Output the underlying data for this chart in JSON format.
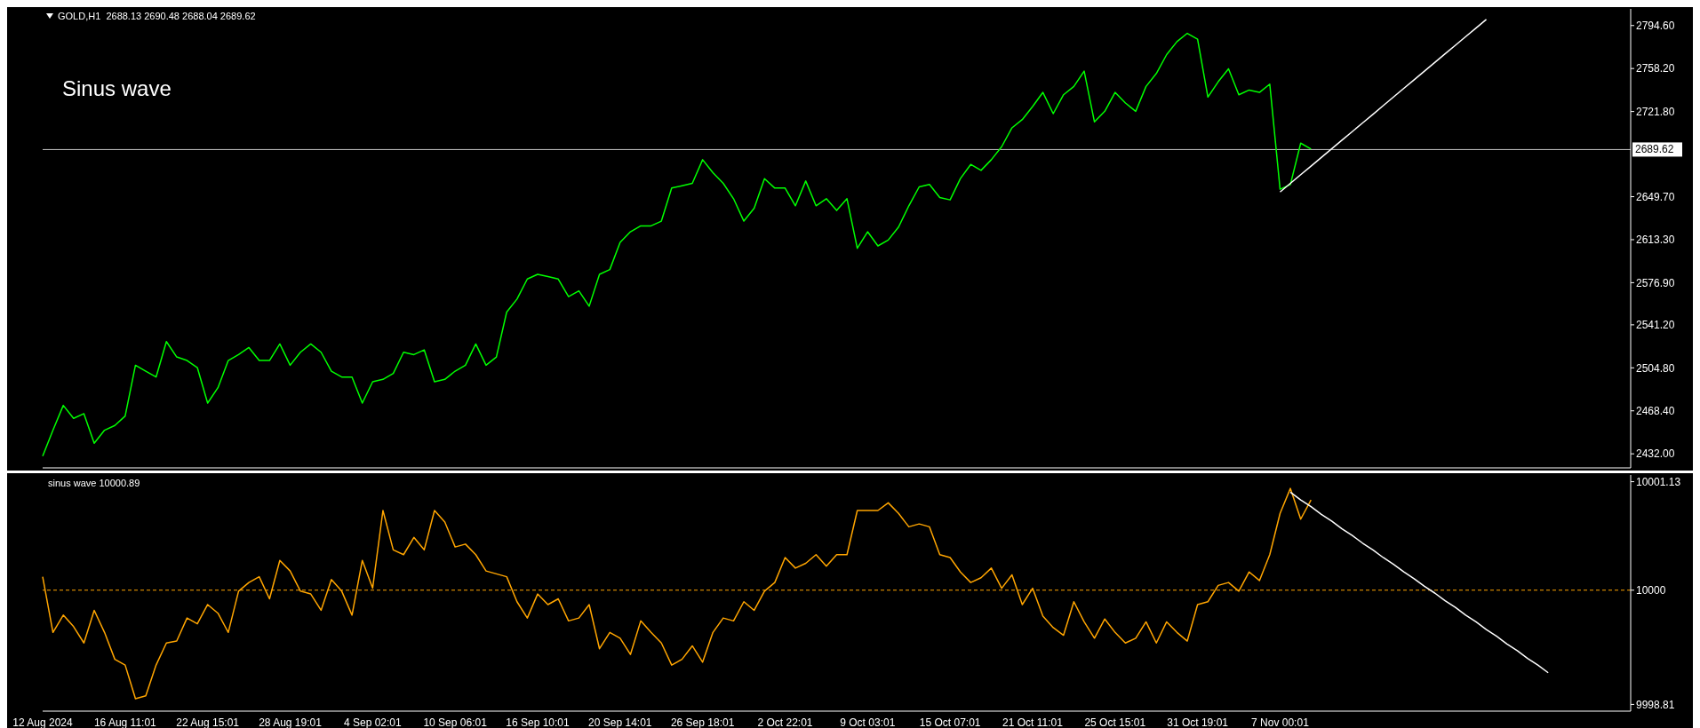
{
  "chart_data": [
    {
      "type": "line",
      "title": "Sinus wave",
      "subtitle": "GOLD,H1  2688.13 2690.48 2688.04 2689.62",
      "categories": [
        null,
        null,
        null,
        null,
        null,
        null,
        null,
        null,
        null,
        null,
        null,
        null,
        null,
        null,
        null,
        null,
        null,
        null,
        null,
        null,
        null,
        null,
        null,
        null,
        null,
        null,
        null,
        null,
        null,
        null,
        null,
        null,
        null,
        null,
        null,
        null,
        null,
        null,
        null,
        null,
        null,
        null,
        null,
        null,
        null,
        null,
        null,
        null,
        null,
        null,
        null,
        null,
        null,
        null,
        null,
        null,
        null,
        null,
        null,
        null,
        null,
        null,
        null,
        null,
        null,
        null,
        null,
        null,
        null,
        null,
        null,
        null,
        null,
        null,
        null,
        null,
        null,
        null,
        null,
        null,
        null,
        null,
        null,
        null,
        null,
        null,
        null,
        null,
        null,
        null,
        null,
        null,
        null,
        null,
        null,
        null,
        null,
        null,
        null,
        null,
        null,
        null,
        null,
        null,
        null,
        null,
        null,
        null,
        null,
        null,
        null,
        null,
        null,
        null,
        null,
        null,
        null,
        null,
        null,
        null,
        null,
        null,
        null,
        null,
        null,
        null,
        null,
        null,
        null,
        null,
        null,
        null,
        null,
        null,
        null,
        null,
        null,
        null,
        null,
        null,
        null,
        null,
        null,
        null,
        null,
        null,
        null,
        null,
        null,
        null,
        null,
        null,
        null,
        null,
        null
      ],
      "ylim": [
        2420.1,
        2808.7
      ],
      "yticks": [
        {
          "value": 2794.6,
          "label": "2794.60"
        },
        {
          "value": 2758.2,
          "label": "2758.20"
        },
        {
          "value": 2721.8,
          "label": "2721.80"
        },
        {
          "value": 2649.7,
          "label": "2649.70"
        },
        {
          "value": 2613.3,
          "label": "2613.30"
        },
        {
          "value": 2576.9,
          "label": "2576.90"
        },
        {
          "value": 2541.2,
          "label": "2541.20"
        },
        {
          "value": 2504.8,
          "label": "2504.80"
        },
        {
          "value": 2468.4,
          "label": "2468.40"
        },
        {
          "value": 2432,
          "label": "2432.00"
        }
      ],
      "tick_labels": "y",
      "grid": false,
      "ref_lines": [
        {
          "axis": "y",
          "value": 2689.62,
          "label": "2689.62",
          "color": "#c0c0c0"
        }
      ],
      "series": [
        {
          "color": "#00ff00",
          "values": [
            2430,
            2452,
            2473,
            2462,
            2466,
            2441,
            2452,
            2456,
            2464,
            2507,
            2502,
            2497,
            2527,
            2514,
            2511,
            2505,
            2475,
            2488,
            2511,
            2516,
            2522,
            2511,
            2511,
            2525,
            2507,
            2518,
            2525,
            2518,
            2502,
            2497,
            2497,
            2475,
            2493,
            2495,
            2500,
            2518,
            2516,
            2520,
            2493,
            2495,
            2502,
            2507,
            2525,
            2507,
            2514,
            2552,
            2563,
            2580,
            2584,
            2582,
            2580,
            2565,
            2570,
            2557,
            2584,
            2588,
            2611,
            2620,
            2625,
            2625,
            2629,
            2657,
            2659,
            2661,
            2681,
            2670,
            2661,
            2648,
            2629,
            2640,
            2665,
            2657,
            2657,
            2642,
            2663,
            2642,
            2648,
            2638,
            2648,
            2606,
            2620,
            2608,
            2613,
            2624,
            2642,
            2658,
            2660,
            2649,
            2647,
            2665,
            2677,
            2672,
            2681,
            2692,
            2708,
            2715,
            2726,
            2738,
            2720,
            2736,
            2743,
            2756,
            2713,
            2722,
            2738,
            2729,
            2722,
            2743,
            2754,
            2770,
            2781,
            2788,
            2783,
            2734,
            2747,
            2758,
            2736,
            2740,
            2738,
            2745,
            2656,
            2660,
            2695,
            2690,
            null,
            null,
            null,
            null,
            null,
            null,
            null,
            null,
            null,
            null,
            null,
            null,
            null,
            null,
            null,
            null,
            null,
            null,
            null,
            null,
            null,
            null,
            null,
            null,
            null,
            null,
            null,
            null,
            null,
            null,
            null
          ]
        },
        {
          "type": "line",
          "color": "#ffffff",
          "values": [
            null,
            null,
            null,
            null,
            null,
            null,
            null,
            null,
            null,
            null,
            null,
            null,
            null,
            null,
            null,
            null,
            null,
            null,
            null,
            null,
            null,
            null,
            null,
            null,
            null,
            null,
            null,
            null,
            null,
            null,
            null,
            null,
            null,
            null,
            null,
            null,
            null,
            null,
            null,
            null,
            null,
            null,
            null,
            null,
            null,
            null,
            null,
            null,
            null,
            null,
            null,
            null,
            null,
            null,
            null,
            null,
            null,
            null,
            null,
            null,
            null,
            null,
            null,
            null,
            null,
            null,
            null,
            null,
            null,
            null,
            null,
            null,
            null,
            null,
            null,
            null,
            null,
            null,
            null,
            null,
            null,
            null,
            null,
            null,
            null,
            null,
            null,
            null,
            null,
            null,
            null,
            null,
            null,
            null,
            null,
            null,
            null,
            null,
            null,
            null,
            null,
            null,
            null,
            null,
            null,
            null,
            null,
            null,
            null,
            null,
            null,
            null,
            null,
            null,
            null,
            null,
            null,
            null,
            null,
            null,
            2653.7,
            2661.0,
            2668.3,
            2675.6,
            2682.9,
            2690.2,
            2697.5,
            2704.8,
            2712.1,
            2719.4,
            2726.8,
            2734.1,
            2741.4,
            2748.7,
            2756.0,
            2763.3,
            2770.6,
            2777.9,
            2785.2,
            2792.5,
            2799.8,
            null,
            null,
            null,
            null,
            null,
            null,
            null,
            null,
            null,
            null,
            null,
            null,
            null,
            null
          ]
        }
      ]
    },
    {
      "type": "line",
      "title": "sinus wave 10000.89",
      "categories": [
        "12 Aug 2024",
        null,
        null,
        null,
        null,
        null,
        null,
        null,
        "16 Aug 11:01",
        null,
        null,
        null,
        null,
        null,
        null,
        null,
        "22 Aug 15:01",
        null,
        null,
        null,
        null,
        null,
        null,
        null,
        "28 Aug 19:01",
        null,
        null,
        null,
        null,
        null,
        null,
        null,
        "4 Sep 02:01",
        null,
        null,
        null,
        null,
        null,
        null,
        null,
        "10 Sep 06:01",
        null,
        null,
        null,
        null,
        null,
        null,
        null,
        "16 Sep 10:01",
        null,
        null,
        null,
        null,
        null,
        null,
        null,
        "20 Sep 14:01",
        null,
        null,
        null,
        null,
        null,
        null,
        null,
        "26 Sep 18:01",
        null,
        null,
        null,
        null,
        null,
        null,
        null,
        "2 Oct 22:01",
        null,
        null,
        null,
        null,
        null,
        null,
        null,
        "9 Oct 03:01",
        null,
        null,
        null,
        null,
        null,
        null,
        null,
        "15 Oct 07:01",
        null,
        null,
        null,
        null,
        null,
        null,
        null,
        "21 Oct 11:01",
        null,
        null,
        null,
        null,
        null,
        null,
        null,
        "25 Oct 15:01",
        null,
        null,
        null,
        null,
        null,
        null,
        null,
        "31 Oct 19:01",
        null,
        null,
        null,
        null,
        null,
        null,
        null,
        "7 Nov 00:01",
        null,
        null,
        null,
        null,
        null,
        null,
        null,
        null,
        null,
        null,
        null,
        null,
        null,
        null,
        null,
        null,
        null,
        null,
        null,
        null,
        null,
        null,
        null,
        null,
        null,
        null,
        null,
        null,
        null,
        null,
        null,
        null,
        null,
        null
      ],
      "ylim": [
        9998.74,
        10001.2
      ],
      "yticks": [
        10001.13,
        10000,
        9998.81
      ],
      "grid": false,
      "ref_lines": [
        {
          "axis": "y",
          "value": 10000,
          "color": "#ffa500",
          "line_style": "dashed"
        }
      ],
      "series": [
        {
          "color": "#ffa500",
          "values": [
            10000.14,
            9999.56,
            9999.74,
            9999.62,
            9999.45,
            9999.79,
            9999.56,
            9999.28,
            9999.22,
            9998.87,
            9998.9,
            9999.22,
            9999.45,
            9999.47,
            9999.71,
            9999.65,
            9999.85,
            9999.76,
            9999.56,
            9999.99,
            10000.08,
            10000.14,
            9999.91,
            10000.31,
            10000.2,
            9999.99,
            9999.96,
            9999.79,
            10000.11,
            9999.99,
            9999.74,
            10000.31,
            10000.02,
            10000.83,
            10000.42,
            10000.37,
            10000.55,
            10000.42,
            10000.83,
            10000.71,
            10000.45,
            10000.48,
            10000.37,
            10000.2,
            10000.17,
            10000.14,
            9999.88,
            9999.71,
            9999.96,
            9999.85,
            9999.91,
            9999.68,
            9999.71,
            9999.85,
            9999.39,
            9999.56,
            9999.5,
            9999.33,
            9999.68,
            9999.56,
            9999.45,
            9999.22,
            9999.28,
            9999.42,
            9999.25,
            9999.56,
            9999.71,
            9999.68,
            9999.88,
            9999.79,
            9999.99,
            10000.08,
            10000.34,
            10000.23,
            10000.28,
            10000.37,
            10000.25,
            10000.37,
            10000.37,
            10000.83,
            10000.83,
            10000.83,
            10000.91,
            10000.8,
            10000.66,
            10000.69,
            10000.66,
            10000.37,
            10000.34,
            10000.19,
            10000.08,
            10000.13,
            10000.23,
            10000.02,
            10000.16,
            9999.85,
            10000.02,
            9999.73,
            9999.61,
            9999.53,
            9999.88,
            9999.67,
            9999.5,
            9999.7,
            9999.56,
            9999.45,
            9999.5,
            9999.67,
            9999.45,
            9999.67,
            9999.56,
            9999.47,
            9999.85,
            9999.88,
            10000.05,
            10000.08,
            9999.99,
            10000.19,
            10000.1,
            10000.37,
            10000.8,
            10001.06,
            10000.74,
            10000.94,
            null,
            null,
            null,
            null,
            null,
            null,
            null,
            null,
            null,
            null,
            null,
            null,
            null,
            null,
            null,
            null,
            null,
            null,
            null,
            null,
            null,
            null,
            null,
            null,
            null,
            null,
            null,
            null,
            null,
            null,
            null
          ]
        },
        {
          "type": "line",
          "color": "#ffffff",
          "values": [
            null,
            null,
            null,
            null,
            null,
            null,
            null,
            null,
            null,
            null,
            null,
            null,
            null,
            null,
            null,
            null,
            null,
            null,
            null,
            null,
            null,
            null,
            null,
            null,
            null,
            null,
            null,
            null,
            null,
            null,
            null,
            null,
            null,
            null,
            null,
            null,
            null,
            null,
            null,
            null,
            null,
            null,
            null,
            null,
            null,
            null,
            null,
            null,
            null,
            null,
            null,
            null,
            null,
            null,
            null,
            null,
            null,
            null,
            null,
            null,
            null,
            null,
            null,
            null,
            null,
            null,
            null,
            null,
            null,
            null,
            null,
            null,
            null,
            null,
            null,
            null,
            null,
            null,
            null,
            null,
            null,
            null,
            null,
            null,
            null,
            null,
            null,
            null,
            null,
            null,
            null,
            null,
            null,
            null,
            null,
            null,
            null,
            null,
            null,
            null,
            null,
            null,
            null,
            null,
            null,
            null,
            null,
            null,
            null,
            null,
            null,
            null,
            null,
            null,
            null,
            null,
            null,
            null,
            null,
            null,
            null,
            10001.02,
            10000.94,
            10000.87,
            10000.79,
            10000.72,
            10000.64,
            10000.57,
            10000.49,
            10000.42,
            10000.34,
            10000.27,
            10000.19,
            10000.12,
            10000.04,
            9999.97,
            9999.89,
            9999.82,
            9999.74,
            9999.67,
            9999.59,
            9999.52,
            9999.44,
            9999.37,
            9999.29,
            9999.22,
            9999.14,
            null,
            null,
            null,
            null,
            null,
            null,
            null,
            null
          ]
        }
      ]
    }
  ]
}
